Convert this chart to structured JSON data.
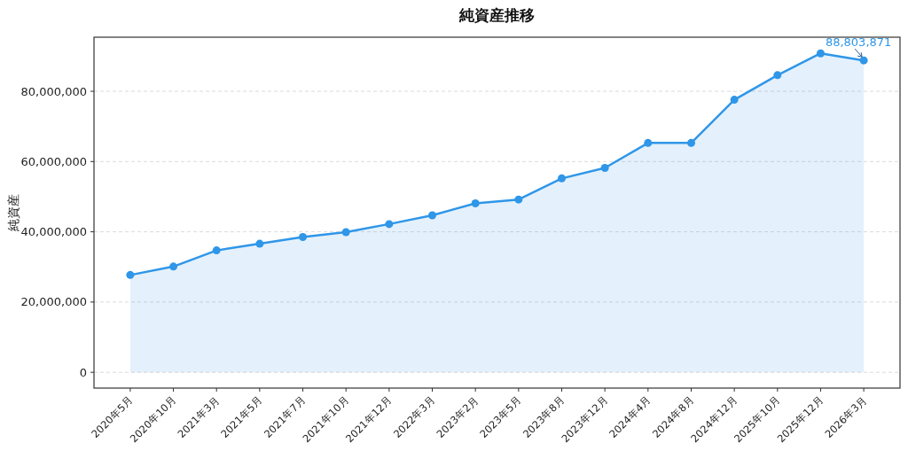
{
  "chart_data": {
    "type": "area",
    "title": "純資産推移",
    "ylabel": "純資産",
    "categories": [
      "2020年5月",
      "2020年10月",
      "2021年3月",
      "2021年5月",
      "2021年7月",
      "2021年10月",
      "2021年12月",
      "2022年3月",
      "2023年2月",
      "2023年5月",
      "2023年8月",
      "2023年12月",
      "2024年4月",
      "2024年8月",
      "2024年12月",
      "2025年10月",
      "2025年12月",
      "2026年3月"
    ],
    "series": [
      {
        "color": "#2f96e8",
        "values": [
          27700000,
          30100000,
          34700000,
          36600000,
          38500000,
          39900000,
          42200000,
          44700000,
          48100000,
          49200000,
          55200000,
          58200000,
          65300000,
          65300000,
          77600000,
          84600000,
          90800000,
          88803871
        ]
      }
    ],
    "ylim": [
      -4500000,
      95400000
    ],
    "yticks": [
      0,
      {
        "value": 20000000,
        "label": "20,000,000"
      },
      {
        "value": 40000000,
        "label": "40,000,000"
      },
      {
        "value": 60000000,
        "label": "60,000,000"
      },
      {
        "value": 80000000,
        "label": "80,000,000"
      }
    ],
    "grid": "y",
    "marker": "circle",
    "line_style": "solid",
    "annotations": [
      {
        "text": "88,803,871",
        "x": "2026年3月",
        "y": 88803871
      }
    ]
  }
}
